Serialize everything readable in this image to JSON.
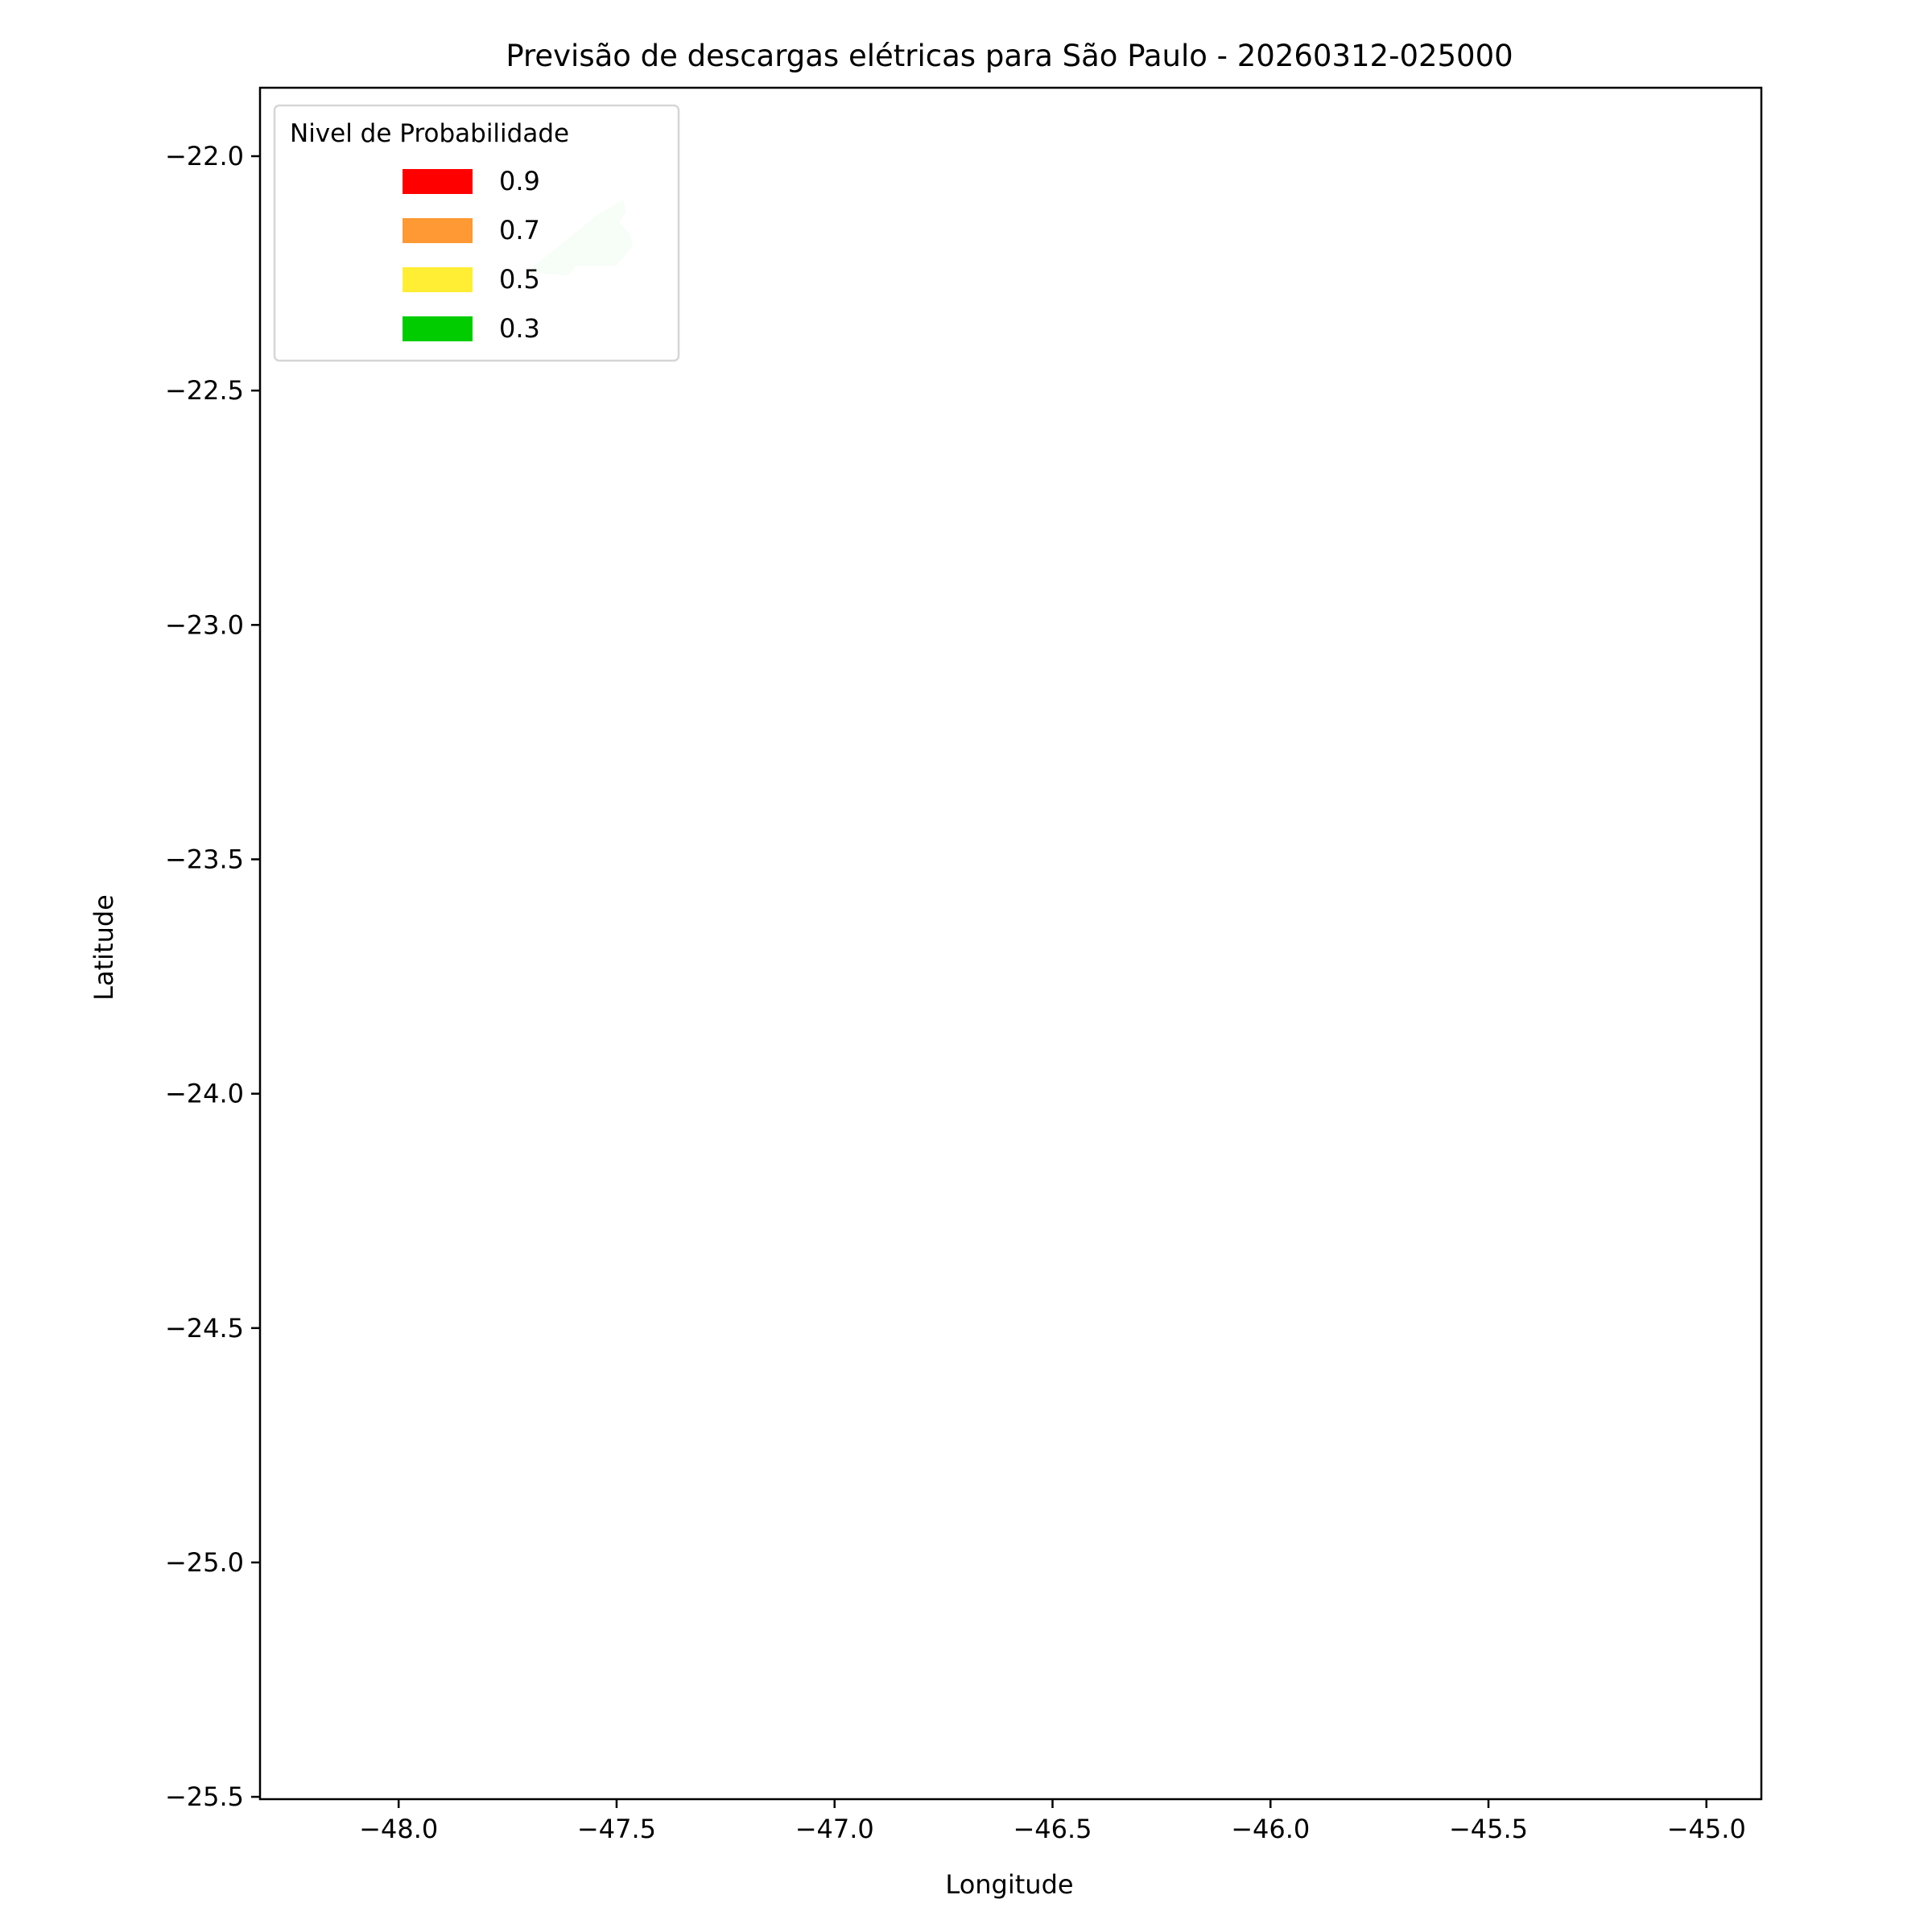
{
  "chart_data": {
    "type": "map",
    "title": "Previsão de descargas elétricas para São Paulo - 20260312-025000",
    "xlabel": "Longitude",
    "ylabel": "Latitude",
    "xlim": [
      -48.318,
      -44.874
    ],
    "ylim": [
      -25.505,
      -21.854
    ],
    "xticks": [
      -48.0,
      -47.5,
      -47.0,
      -46.5,
      -46.0,
      -45.5,
      -45.0
    ],
    "xtick_labels": [
      "−48.0",
      "−47.5",
      "−47.0",
      "−46.5",
      "−46.0",
      "−45.5",
      "−45.0"
    ],
    "yticks": [
      -22.0,
      -22.5,
      -23.0,
      -23.5,
      -24.0,
      -24.5,
      -25.0,
      -25.5
    ],
    "ytick_labels": [
      "−22.0",
      "−22.5",
      "−23.0",
      "−23.5",
      "−24.0",
      "−24.5",
      "−25.0",
      "−25.5"
    ],
    "grid": false,
    "legend": {
      "title": "Nivel de Probabilidade",
      "placement": "top-left",
      "entries": [
        {
          "label": "0.9",
          "color": "#ff0000"
        },
        {
          "label": "0.7",
          "color": "#ff9933"
        },
        {
          "label": "0.5",
          "color": "#ffee33"
        },
        {
          "label": "0.3",
          "color": "#00cc00"
        }
      ]
    },
    "polygons": [
      {
        "level": 0.3,
        "color": "#d5f5d6",
        "coordinates": [
          [
            -47.708,
            -22.249
          ],
          [
            -47.544,
            -22.125
          ],
          [
            -47.485,
            -22.093
          ],
          [
            -47.478,
            -22.119
          ],
          [
            -47.494,
            -22.141
          ],
          [
            -47.47,
            -22.165
          ],
          [
            -47.463,
            -22.191
          ],
          [
            -47.5,
            -22.234
          ],
          [
            -47.594,
            -22.234
          ],
          [
            -47.61,
            -22.254
          ]
        ]
      }
    ]
  }
}
